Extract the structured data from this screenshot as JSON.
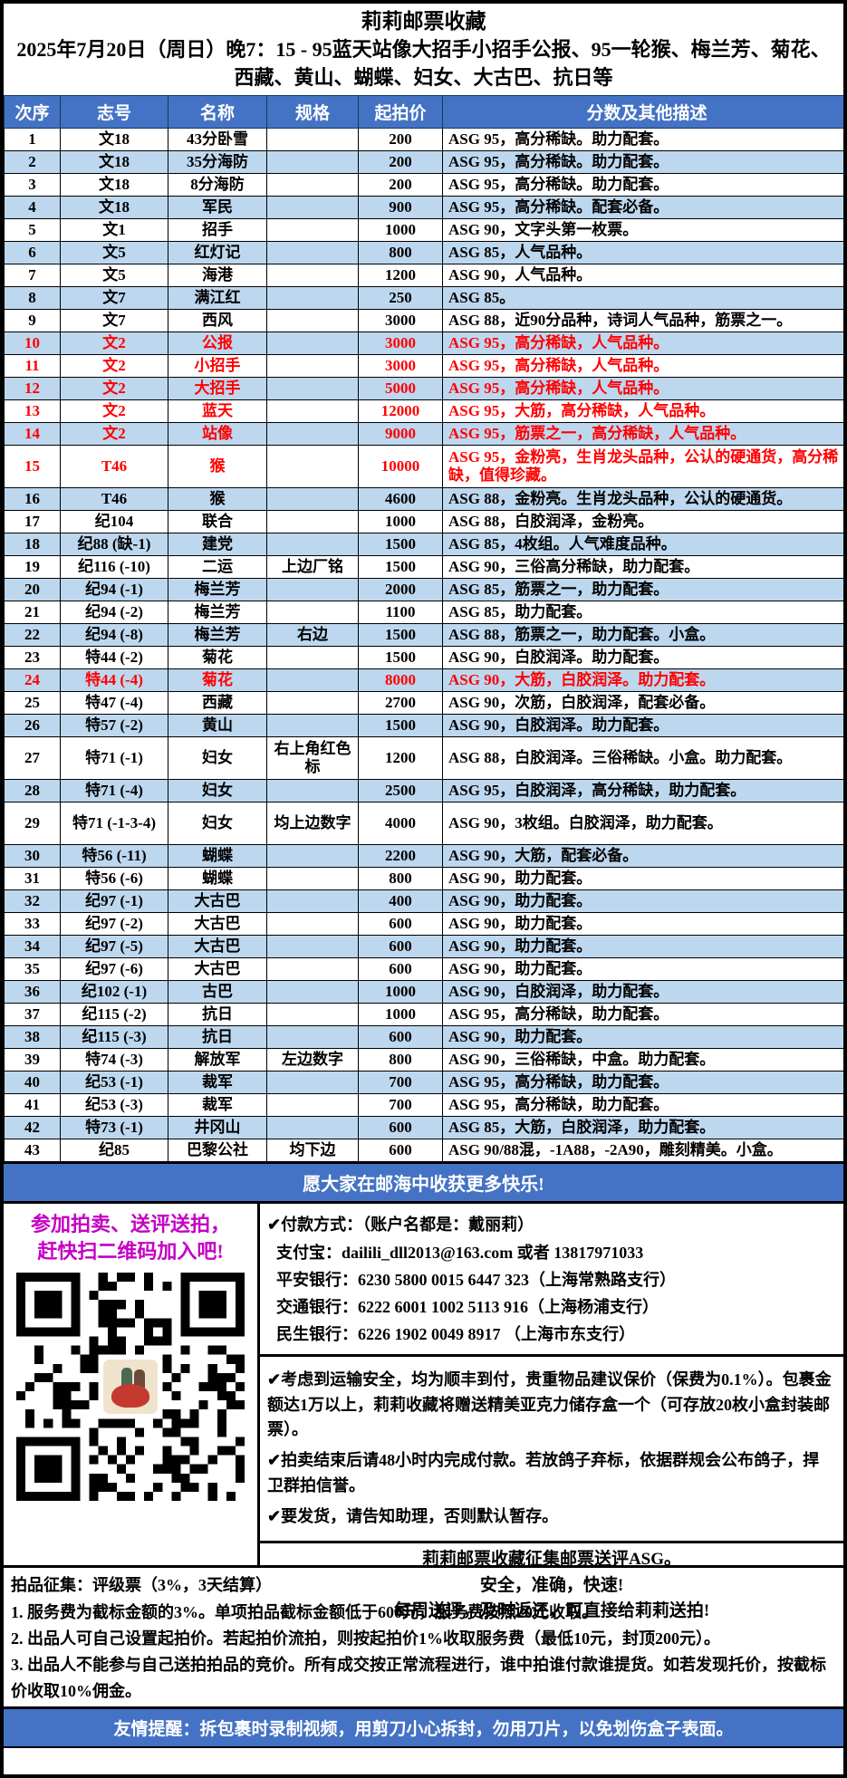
{
  "colors": {
    "header-blue": "#4472C4",
    "band-blue": "#BDD7EE",
    "red": "#FF0000",
    "magenta": "#C400C4"
  },
  "header": {
    "title": "莉莉邮票收藏",
    "subtitle": "2025年7月20日（周日）晚7：15 - 95蓝天站像大招手小招手公报、95一轮猴、梅兰芳、菊花、西藏、黄山、蝴蝶、妇女、大古巴、抗日等"
  },
  "table": {
    "headers": [
      "次序",
      "志号",
      "名称",
      "规格",
      "起拍价",
      "分数及其他描述"
    ],
    "rows": [
      {
        "no": "1",
        "catalog": "文18",
        "name": "43分卧雪",
        "spec": "",
        "price": "200",
        "desc": "ASG 95，高分稀缺。助力配套。",
        "red": false,
        "tall": false
      },
      {
        "no": "2",
        "catalog": "文18",
        "name": "35分海防",
        "spec": "",
        "price": "200",
        "desc": "ASG 95，高分稀缺。助力配套。",
        "red": false,
        "tall": false
      },
      {
        "no": "3",
        "catalog": "文18",
        "name": "8分海防",
        "spec": "",
        "price": "200",
        "desc": "ASG 95，高分稀缺。助力配套。",
        "red": false,
        "tall": false
      },
      {
        "no": "4",
        "catalog": "文18",
        "name": "军民",
        "spec": "",
        "price": "900",
        "desc": "ASG 95，高分稀缺。配套必备。",
        "red": false,
        "tall": false
      },
      {
        "no": "5",
        "catalog": "文1",
        "name": "招手",
        "spec": "",
        "price": "1000",
        "desc": "ASG 90，文字头第一枚票。",
        "red": false,
        "tall": false
      },
      {
        "no": "6",
        "catalog": "文5",
        "name": "红灯记",
        "spec": "",
        "price": "800",
        "desc": "ASG 85，人气品种。",
        "red": false,
        "tall": false
      },
      {
        "no": "7",
        "catalog": "文5",
        "name": "海港",
        "spec": "",
        "price": "1200",
        "desc": "ASG 90，人气品种。",
        "red": false,
        "tall": false
      },
      {
        "no": "8",
        "catalog": "文7",
        "name": "满江红",
        "spec": "",
        "price": "250",
        "desc": "ASG 85。",
        "red": false,
        "tall": false
      },
      {
        "no": "9",
        "catalog": "文7",
        "name": "西风",
        "spec": "",
        "price": "3000",
        "desc": "ASG 88，近90分品种，诗词人气品种，筋票之一。",
        "red": false,
        "tall": false
      },
      {
        "no": "10",
        "catalog": "文2",
        "name": "公报",
        "spec": "",
        "price": "3000",
        "desc": "ASG 95，高分稀缺，人气品种。",
        "red": true,
        "tall": false
      },
      {
        "no": "11",
        "catalog": "文2",
        "name": "小招手",
        "spec": "",
        "price": "3000",
        "desc": "ASG 95，高分稀缺，人气品种。",
        "red": true,
        "tall": false
      },
      {
        "no": "12",
        "catalog": "文2",
        "name": "大招手",
        "spec": "",
        "price": "5000",
        "desc": "ASG 95，高分稀缺，人气品种。",
        "red": true,
        "tall": false
      },
      {
        "no": "13",
        "catalog": "文2",
        "name": "蓝天",
        "spec": "",
        "price": "12000",
        "desc": "ASG 95，大筋，高分稀缺，人气品种。",
        "red": true,
        "tall": false
      },
      {
        "no": "14",
        "catalog": "文2",
        "name": "站像",
        "spec": "",
        "price": "9000",
        "desc": "ASG 95，筋票之一，高分稀缺，人气品种。",
        "red": true,
        "tall": false
      },
      {
        "no": "15",
        "catalog": "T46",
        "name": "猴",
        "spec": "",
        "price": "10000",
        "desc": "ASG 95，金粉亮，生肖龙头品种，公认的硬通货，高分稀缺，值得珍藏。",
        "red": true,
        "tall": true
      },
      {
        "no": "16",
        "catalog": "T46",
        "name": "猴",
        "spec": "",
        "price": "4600",
        "desc": "ASG 88，金粉亮。生肖龙头品种，公认的硬通货。",
        "red": false,
        "tall": false
      },
      {
        "no": "17",
        "catalog": "纪104",
        "name": "联合",
        "spec": "",
        "price": "1000",
        "desc": "ASG 88，白胶润泽，金粉亮。",
        "red": false,
        "tall": false
      },
      {
        "no": "18",
        "catalog": "纪88 (缺-1)",
        "name": "建党",
        "spec": "",
        "price": "1500",
        "desc": "ASG 85，4枚组。人气难度品种。",
        "red": false,
        "tall": false
      },
      {
        "no": "19",
        "catalog": "纪116 (-10)",
        "name": "二运",
        "spec": "上边厂铭",
        "price": "1500",
        "desc": "ASG 90，三俗高分稀缺，助力配套。",
        "red": false,
        "tall": false
      },
      {
        "no": "20",
        "catalog": "纪94 (-1)",
        "name": "梅兰芳",
        "spec": "",
        "price": "2000",
        "desc": "ASG 85，筋票之一，助力配套。",
        "red": false,
        "tall": false
      },
      {
        "no": "21",
        "catalog": "纪94 (-2)",
        "name": "梅兰芳",
        "spec": "",
        "price": "1100",
        "desc": "ASG 85，助力配套。",
        "red": false,
        "tall": false
      },
      {
        "no": "22",
        "catalog": "纪94 (-8)",
        "name": "梅兰芳",
        "spec": "右边",
        "price": "1500",
        "desc": "ASG 88，筋票之一，助力配套。小盒。",
        "red": false,
        "tall": false
      },
      {
        "no": "23",
        "catalog": "特44 (-2)",
        "name": "菊花",
        "spec": "",
        "price": "1500",
        "desc": "ASG 90，白胶润泽。助力配套。",
        "red": false,
        "tall": false
      },
      {
        "no": "24",
        "catalog": "特44 (-4)",
        "name": "菊花",
        "spec": "",
        "price": "8000",
        "desc": "ASG 90，大筋，白胶润泽。助力配套。",
        "red": true,
        "tall": false
      },
      {
        "no": "25",
        "catalog": "特47 (-4)",
        "name": "西藏",
        "spec": "",
        "price": "2700",
        "desc": "ASG 90，次筋，白胶润泽，配套必备。",
        "red": false,
        "tall": false
      },
      {
        "no": "26",
        "catalog": "特57 (-2)",
        "name": "黄山",
        "spec": "",
        "price": "1500",
        "desc": "ASG 90，白胶润泽。助力配套。",
        "red": false,
        "tall": false
      },
      {
        "no": "27",
        "catalog": "特71 (-1)",
        "name": "妇女",
        "spec": "右上角红色标",
        "price": "1200",
        "desc": "ASG 88，白胶润泽。三俗稀缺。小盒。助力配套。",
        "red": false,
        "tall": true
      },
      {
        "no": "28",
        "catalog": "特71 (-4)",
        "name": "妇女",
        "spec": "",
        "price": "2500",
        "desc": "ASG 95，白胶润泽，高分稀缺，助力配套。",
        "red": false,
        "tall": false
      },
      {
        "no": "29",
        "catalog": "特71 (-1-3-4)",
        "name": "妇女",
        "spec": "均上边数字",
        "price": "4000",
        "desc": "ASG 90，3枚组。白胶润泽，助力配套。",
        "red": false,
        "tall": true
      },
      {
        "no": "30",
        "catalog": "特56 (-11)",
        "name": "蝴蝶",
        "spec": "",
        "price": "2200",
        "desc": "ASG 90，大筋，配套必备。",
        "red": false,
        "tall": false
      },
      {
        "no": "31",
        "catalog": "特56 (-6)",
        "name": "蝴蝶",
        "spec": "",
        "price": "800",
        "desc": "ASG 90，助力配套。",
        "red": false,
        "tall": false
      },
      {
        "no": "32",
        "catalog": "纪97 (-1)",
        "name": "大古巴",
        "spec": "",
        "price": "400",
        "desc": "ASG 90，助力配套。",
        "red": false,
        "tall": false
      },
      {
        "no": "33",
        "catalog": "纪97 (-2)",
        "name": "大古巴",
        "spec": "",
        "price": "600",
        "desc": "ASG 90，助力配套。",
        "red": false,
        "tall": false
      },
      {
        "no": "34",
        "catalog": "纪97 (-5)",
        "name": "大古巴",
        "spec": "",
        "price": "600",
        "desc": "ASG 90，助力配套。",
        "red": false,
        "tall": false
      },
      {
        "no": "35",
        "catalog": "纪97 (-6)",
        "name": "大古巴",
        "spec": "",
        "price": "600",
        "desc": "ASG 90，助力配套。",
        "red": false,
        "tall": false
      },
      {
        "no": "36",
        "catalog": "纪102 (-1)",
        "name": "古巴",
        "spec": "",
        "price": "1000",
        "desc": "ASG 90，白胶润泽，助力配套。",
        "red": false,
        "tall": false
      },
      {
        "no": "37",
        "catalog": "纪115 (-2)",
        "name": "抗日",
        "spec": "",
        "price": "1000",
        "desc": "ASG 95，高分稀缺，助力配套。",
        "red": false,
        "tall": false
      },
      {
        "no": "38",
        "catalog": "纪115 (-3)",
        "name": "抗日",
        "spec": "",
        "price": "600",
        "desc": "ASG 90，助力配套。",
        "red": false,
        "tall": false
      },
      {
        "no": "39",
        "catalog": "特74 (-3)",
        "name": "解放军",
        "spec": "左边数字",
        "price": "800",
        "desc": "ASG 90，三俗稀缺，中盒。助力配套。",
        "red": false,
        "tall": false
      },
      {
        "no": "40",
        "catalog": "纪53 (-1)",
        "name": "裁军",
        "spec": "",
        "price": "700",
        "desc": "ASG 95，高分稀缺，助力配套。",
        "red": false,
        "tall": false
      },
      {
        "no": "41",
        "catalog": "纪53 (-3)",
        "name": "裁军",
        "spec": "",
        "price": "700",
        "desc": "ASG 95，高分稀缺，助力配套。",
        "red": false,
        "tall": false
      },
      {
        "no": "42",
        "catalog": "特73 (-1)",
        "name": "井冈山",
        "spec": "",
        "price": "600",
        "desc": "ASG 85，大筋，白胶润泽，助力配套。",
        "red": false,
        "tall": false
      },
      {
        "no": "43",
        "catalog": "纪85",
        "name": "巴黎公社",
        "spec": "均下边",
        "price": "600",
        "desc": "ASG 90/88混，-1A88，-2A90，雕刻精美。小盒。",
        "red": false,
        "tall": false
      }
    ]
  },
  "mid_banner": "愿大家在邮海中收获更多快乐!",
  "footer": {
    "promo_line1": "参加拍卖、送评送拍，",
    "promo_line2": "赶快扫二维码加入吧!",
    "qr_label": "qr-code",
    "payment": {
      "heading": "✔付款方式：（账户名都是：戴丽莉）",
      "lines": [
        "支付宝：dailili_dll2013@163.com  或者 13817971033",
        "平安银行：6230 5800 0015 6447 323（上海常熟路支行）",
        "交通银行：6222 6001 1002 5113 916（上海杨浦支行）",
        "民生银行：6226 1902 0049 8917 （上海市东支行）"
      ]
    },
    "notes": [
      "✔考虑到运输安全，均为顺丰到付，贵重物品建议保价（保费为0.1%）。包裹金额达1万以上，莉莉收藏将赠送精美亚克力储存盒一个（可存放20枚小盒封装邮票）。",
      "✔拍卖结束后请48小时内完成付款。若放鸽子弃标，依据群规会公布鸽子，捍卫群拍信誉。",
      "✔要发货，请告知助理，否则默认暂存。"
    ],
    "asg_lines": [
      "莉莉邮票收藏征集邮票送评ASG。",
      "安全，准确，快速!",
      "每周送评，及时返还，可直接给莉莉送拍!"
    ]
  },
  "terms": {
    "heading": "拍品征集：评级票（3%，3天结算）",
    "items": [
      "1. 服务费为截标金额的3%。单项拍品截标金额低于600元，服务费按照20元收取。",
      "2. 出品人可自己设置起拍价。若起拍价流拍，则按起拍价1%收取服务费（最低10元，封顶200元）。",
      "3. 出品人不能参与自己送拍拍品的竞价。所有成交按正常流程进行，谁中拍谁付款谁提货。如若发现托价，按截标价收取10%佣金。"
    ]
  },
  "bottom_banner": "友情提醒：拆包裹时录制视频，用剪刀小心拆封，勿用刀片，以免划伤盒子表面。"
}
